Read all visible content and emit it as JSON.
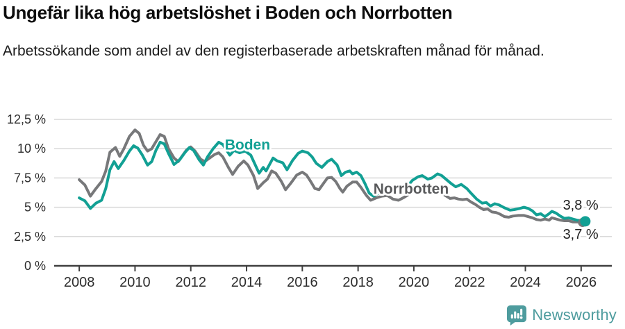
{
  "header": {
    "title": "Ungefär lika hög arbetslöshet i Boden och Norrbotten",
    "subtitle": "Arbetssökande som andel av den registerbaserade arbetskraften månad för månad."
  },
  "chart_data": {
    "type": "line",
    "unit": "%",
    "xlim": [
      2007.1,
      2027.1
    ],
    "ylim": [
      0,
      12.5
    ],
    "grid": true,
    "legend_position": "inline-labels",
    "yticks": [
      {
        "value": 0,
        "label": "0 %"
      },
      {
        "value": 2.5,
        "label": "2,5 %"
      },
      {
        "value": 5,
        "label": "5 %"
      },
      {
        "value": 7.5,
        "label": "7,5 %"
      },
      {
        "value": 10,
        "label": "10 %"
      },
      {
        "value": 12.5,
        "label": "12,5 %"
      }
    ],
    "xticks": [
      {
        "value": 2008,
        "label": "2008"
      },
      {
        "value": 2010,
        "label": "2010"
      },
      {
        "value": 2012,
        "label": "2012"
      },
      {
        "value": 2014,
        "label": "2014"
      },
      {
        "value": 2016,
        "label": "2016"
      },
      {
        "value": 2018,
        "label": "2018"
      },
      {
        "value": 2020,
        "label": "2020"
      },
      {
        "value": 2022,
        "label": "2022"
      },
      {
        "value": 2024,
        "label": "2024"
      },
      {
        "value": 2026,
        "label": "2026"
      }
    ],
    "series": [
      {
        "name": "Norrbotten",
        "color": "#77787a",
        "end_marker": true,
        "end_value_label": "3,7 %",
        "points": [
          [
            2008.0,
            7.35
          ],
          [
            2008.2,
            6.9
          ],
          [
            2008.4,
            5.95
          ],
          [
            2008.6,
            6.6
          ],
          [
            2008.8,
            7.2
          ],
          [
            2008.95,
            8.1
          ],
          [
            2009.1,
            9.7
          ],
          [
            2009.3,
            10.1
          ],
          [
            2009.45,
            9.35
          ],
          [
            2009.6,
            10.0
          ],
          [
            2009.8,
            11.05
          ],
          [
            2010.0,
            11.6
          ],
          [
            2010.15,
            11.3
          ],
          [
            2010.3,
            10.3
          ],
          [
            2010.45,
            9.8
          ],
          [
            2010.6,
            10.0
          ],
          [
            2010.75,
            10.6
          ],
          [
            2010.9,
            11.2
          ],
          [
            2011.05,
            11.05
          ],
          [
            2011.2,
            10.0
          ],
          [
            2011.4,
            9.2
          ],
          [
            2011.55,
            8.9
          ],
          [
            2011.7,
            9.4
          ],
          [
            2011.85,
            9.9
          ],
          [
            2012.0,
            10.15
          ],
          [
            2012.15,
            9.8
          ],
          [
            2012.35,
            9.1
          ],
          [
            2012.5,
            8.9
          ],
          [
            2012.65,
            9.15
          ],
          [
            2012.85,
            9.5
          ],
          [
            2013.0,
            9.65
          ],
          [
            2013.15,
            9.3
          ],
          [
            2013.35,
            8.4
          ],
          [
            2013.5,
            7.8
          ],
          [
            2013.7,
            8.5
          ],
          [
            2013.9,
            8.95
          ],
          [
            2014.05,
            8.6
          ],
          [
            2014.25,
            7.7
          ],
          [
            2014.4,
            6.6
          ],
          [
            2014.6,
            7.1
          ],
          [
            2014.75,
            7.4
          ],
          [
            2014.9,
            8.1
          ],
          [
            2015.05,
            7.9
          ],
          [
            2015.25,
            7.2
          ],
          [
            2015.4,
            6.5
          ],
          [
            2015.6,
            7.1
          ],
          [
            2015.8,
            7.75
          ],
          [
            2016.0,
            8.0
          ],
          [
            2016.15,
            7.75
          ],
          [
            2016.3,
            7.2
          ],
          [
            2016.45,
            6.6
          ],
          [
            2016.6,
            6.5
          ],
          [
            2016.75,
            7.0
          ],
          [
            2016.9,
            7.5
          ],
          [
            2017.05,
            7.55
          ],
          [
            2017.2,
            7.2
          ],
          [
            2017.35,
            6.6
          ],
          [
            2017.45,
            6.3
          ],
          [
            2017.6,
            6.8
          ],
          [
            2017.8,
            7.15
          ],
          [
            2017.95,
            7.15
          ],
          [
            2018.1,
            6.7
          ],
          [
            2018.3,
            6.0
          ],
          [
            2018.45,
            5.6
          ],
          [
            2018.65,
            5.8
          ],
          [
            2018.85,
            5.95
          ],
          [
            2019.05,
            6.0
          ],
          [
            2019.25,
            5.7
          ],
          [
            2019.45,
            5.6
          ],
          [
            2019.65,
            5.85
          ],
          [
            2019.85,
            6.15
          ],
          [
            2020.05,
            6.4
          ],
          [
            2020.25,
            6.6
          ],
          [
            2020.45,
            6.5
          ],
          [
            2020.6,
            6.4
          ],
          [
            2020.8,
            6.6
          ],
          [
            2020.95,
            6.45
          ],
          [
            2021.1,
            6.05
          ],
          [
            2021.3,
            5.75
          ],
          [
            2021.45,
            5.8
          ],
          [
            2021.6,
            5.7
          ],
          [
            2021.75,
            5.65
          ],
          [
            2021.9,
            5.7
          ],
          [
            2022.05,
            5.45
          ],
          [
            2022.2,
            5.25
          ],
          [
            2022.35,
            5.0
          ],
          [
            2022.5,
            4.8
          ],
          [
            2022.65,
            4.85
          ],
          [
            2022.8,
            4.6
          ],
          [
            2022.95,
            4.55
          ],
          [
            2023.1,
            4.4
          ],
          [
            2023.25,
            4.2
          ],
          [
            2023.4,
            4.15
          ],
          [
            2023.55,
            4.25
          ],
          [
            2023.75,
            4.3
          ],
          [
            2023.95,
            4.3
          ],
          [
            2024.1,
            4.2
          ],
          [
            2024.25,
            4.1
          ],
          [
            2024.4,
            3.95
          ],
          [
            2024.55,
            3.9
          ],
          [
            2024.7,
            4.0
          ],
          [
            2024.85,
            3.9
          ],
          [
            2024.95,
            4.1
          ],
          [
            2025.1,
            4.0
          ],
          [
            2025.25,
            3.9
          ],
          [
            2025.4,
            3.85
          ],
          [
            2025.55,
            3.85
          ],
          [
            2025.7,
            3.75
          ],
          [
            2025.9,
            3.75
          ],
          [
            2026.05,
            3.7
          ]
        ]
      },
      {
        "name": "Boden",
        "color": "#12a094",
        "end_marker": true,
        "end_value_label": "3,8 %",
        "points": [
          [
            2008.0,
            5.8
          ],
          [
            2008.2,
            5.55
          ],
          [
            2008.4,
            4.9
          ],
          [
            2008.6,
            5.35
          ],
          [
            2008.8,
            5.6
          ],
          [
            2008.95,
            6.6
          ],
          [
            2009.1,
            8.2
          ],
          [
            2009.25,
            8.9
          ],
          [
            2009.4,
            8.3
          ],
          [
            2009.6,
            9.0
          ],
          [
            2009.8,
            9.8
          ],
          [
            2009.95,
            10.25
          ],
          [
            2010.1,
            10.05
          ],
          [
            2010.25,
            9.5
          ],
          [
            2010.45,
            8.6
          ],
          [
            2010.6,
            8.9
          ],
          [
            2010.75,
            9.85
          ],
          [
            2010.9,
            10.55
          ],
          [
            2011.05,
            10.4
          ],
          [
            2011.2,
            9.6
          ],
          [
            2011.4,
            8.65
          ],
          [
            2011.6,
            9.05
          ],
          [
            2011.8,
            9.7
          ],
          [
            2011.95,
            10.1
          ],
          [
            2012.1,
            9.85
          ],
          [
            2012.3,
            9.05
          ],
          [
            2012.45,
            8.6
          ],
          [
            2012.6,
            9.3
          ],
          [
            2012.8,
            10.0
          ],
          [
            2013.0,
            10.55
          ],
          [
            2013.15,
            10.35
          ],
          [
            2013.4,
            9.45
          ],
          [
            2013.55,
            9.85
          ],
          [
            2013.75,
            9.65
          ],
          [
            2013.95,
            9.8
          ],
          [
            2014.15,
            9.45
          ],
          [
            2014.45,
            7.9
          ],
          [
            2014.6,
            8.4
          ],
          [
            2014.7,
            8.1
          ],
          [
            2014.95,
            9.2
          ],
          [
            2015.1,
            8.95
          ],
          [
            2015.3,
            8.8
          ],
          [
            2015.45,
            8.2
          ],
          [
            2015.65,
            9.0
          ],
          [
            2015.85,
            9.6
          ],
          [
            2016.0,
            9.8
          ],
          [
            2016.2,
            9.65
          ],
          [
            2016.35,
            9.3
          ],
          [
            2016.5,
            8.75
          ],
          [
            2016.7,
            8.4
          ],
          [
            2016.9,
            8.9
          ],
          [
            2017.05,
            9.1
          ],
          [
            2017.25,
            8.6
          ],
          [
            2017.4,
            7.7
          ],
          [
            2017.55,
            8.0
          ],
          [
            2017.7,
            8.1
          ],
          [
            2017.8,
            7.85
          ],
          [
            2017.95,
            8.0
          ],
          [
            2018.1,
            7.7
          ],
          [
            2018.25,
            7.0
          ],
          [
            2018.4,
            6.2
          ],
          [
            2018.55,
            5.95
          ],
          [
            2018.75,
            6.2
          ],
          [
            2018.95,
            6.6
          ],
          [
            2019.15,
            6.85
          ],
          [
            2019.35,
            6.5
          ],
          [
            2019.55,
            6.3
          ],
          [
            2019.75,
            6.75
          ],
          [
            2019.95,
            7.3
          ],
          [
            2020.15,
            7.6
          ],
          [
            2020.3,
            7.7
          ],
          [
            2020.5,
            7.4
          ],
          [
            2020.65,
            7.5
          ],
          [
            2020.85,
            7.85
          ],
          [
            2021.0,
            7.7
          ],
          [
            2021.2,
            7.3
          ],
          [
            2021.35,
            7.0
          ],
          [
            2021.5,
            6.75
          ],
          [
            2021.7,
            6.95
          ],
          [
            2021.9,
            6.6
          ],
          [
            2022.05,
            6.2
          ],
          [
            2022.25,
            5.7
          ],
          [
            2022.45,
            5.35
          ],
          [
            2022.6,
            5.4
          ],
          [
            2022.75,
            5.1
          ],
          [
            2022.9,
            5.3
          ],
          [
            2023.05,
            5.2
          ],
          [
            2023.25,
            4.95
          ],
          [
            2023.45,
            4.75
          ],
          [
            2023.6,
            4.8
          ],
          [
            2023.8,
            4.9
          ],
          [
            2023.95,
            5.0
          ],
          [
            2024.1,
            4.9
          ],
          [
            2024.25,
            4.7
          ],
          [
            2024.4,
            4.35
          ],
          [
            2024.55,
            4.45
          ],
          [
            2024.7,
            4.2
          ],
          [
            2024.85,
            4.45
          ],
          [
            2024.95,
            4.65
          ],
          [
            2025.1,
            4.5
          ],
          [
            2025.25,
            4.25
          ],
          [
            2025.4,
            4.05
          ],
          [
            2025.55,
            4.1
          ],
          [
            2025.7,
            4.0
          ],
          [
            2025.85,
            3.9
          ],
          [
            2026.0,
            3.85
          ],
          [
            2026.15,
            3.8
          ]
        ]
      }
    ],
    "annotations": [
      {
        "text": "Boden",
        "x": 2013.22,
        "y": 10.35,
        "anchor": "start",
        "color": "#12a094",
        "bold": true
      },
      {
        "text": "Norrbotten",
        "x": 2018.55,
        "y": 6.58,
        "anchor": "start",
        "color": "#595a5c",
        "bold": true
      },
      {
        "text": "3,8 %",
        "x": 2026.62,
        "y": 5.2,
        "anchor": "end",
        "color": "#222222",
        "bold": false
      },
      {
        "text": "3,7 %",
        "x": 2026.62,
        "y": 2.72,
        "anchor": "end",
        "color": "#222222",
        "bold": false
      }
    ]
  },
  "footer": {
    "brand": "Newsworthy",
    "brand_color": "#4e9c9e"
  },
  "colors": {
    "axis": "#3f3f3f",
    "grid": "#d9d9d9",
    "tick_text": "#2d2d2d"
  }
}
